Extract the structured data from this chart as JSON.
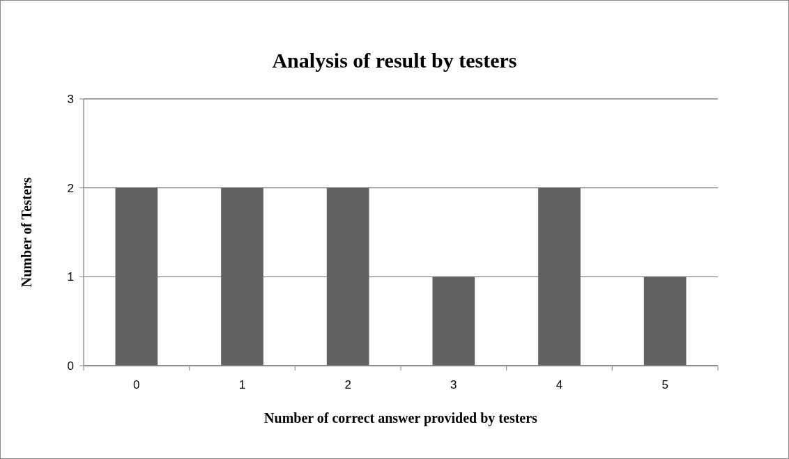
{
  "chart_data": {
    "type": "bar",
    "title": "Analysis of result by testers",
    "xlabel": "Number of correct answer provided by testers",
    "ylabel": "Number of Testers",
    "categories": [
      "0",
      "1",
      "2",
      "3",
      "4",
      "5"
    ],
    "values": [
      2,
      2,
      2,
      1,
      2,
      1
    ],
    "color": "#616161",
    "ylim": [
      0,
      3
    ],
    "yticks": [
      0,
      1,
      2,
      3
    ],
    "grid": "y"
  }
}
